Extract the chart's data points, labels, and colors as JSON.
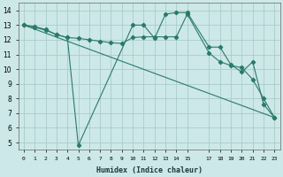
{
  "xlabel": "Humidex (Indice chaleur)",
  "background_color": "#cde8e8",
  "grid_color": "#aacccc",
  "line_color": "#2a7a6a",
  "xlim": [
    -0.5,
    23.5
  ],
  "ylim": [
    4.5,
    14.5
  ],
  "xticks": [
    0,
    1,
    2,
    3,
    4,
    5,
    6,
    7,
    8,
    9,
    10,
    11,
    12,
    13,
    14,
    15,
    17,
    18,
    19,
    20,
    21,
    22,
    23
  ],
  "yticks": [
    5,
    6,
    7,
    8,
    9,
    10,
    11,
    12,
    13,
    14
  ],
  "line1_x": [
    0,
    1,
    2,
    3,
    4,
    5,
    10,
    11,
    12,
    13,
    14,
    15,
    17,
    18,
    19,
    20,
    21,
    22,
    23
  ],
  "line1_y": [
    13.0,
    12.9,
    12.7,
    12.35,
    12.15,
    4.8,
    13.0,
    13.0,
    12.1,
    13.75,
    13.85,
    13.85,
    11.5,
    11.5,
    10.3,
    9.8,
    10.5,
    7.6,
    6.7
  ],
  "line1_has_markers": true,
  "line2_x": [
    0,
    1,
    2,
    3,
    4,
    5,
    6,
    7,
    8,
    9,
    10,
    11,
    12,
    13,
    14,
    15,
    17,
    18,
    19,
    20,
    21,
    22,
    23
  ],
  "line2_y": [
    13.0,
    12.85,
    12.65,
    12.35,
    12.15,
    12.1,
    12.0,
    11.9,
    11.8,
    11.75,
    12.15,
    12.2,
    12.2,
    12.2,
    12.2,
    13.75,
    11.1,
    10.5,
    10.25,
    10.1,
    9.3,
    8.0,
    6.7
  ],
  "line2_has_markers": true,
  "line3_x": [
    0,
    23
  ],
  "line3_y": [
    13.0,
    6.7
  ],
  "line3_has_markers": false
}
